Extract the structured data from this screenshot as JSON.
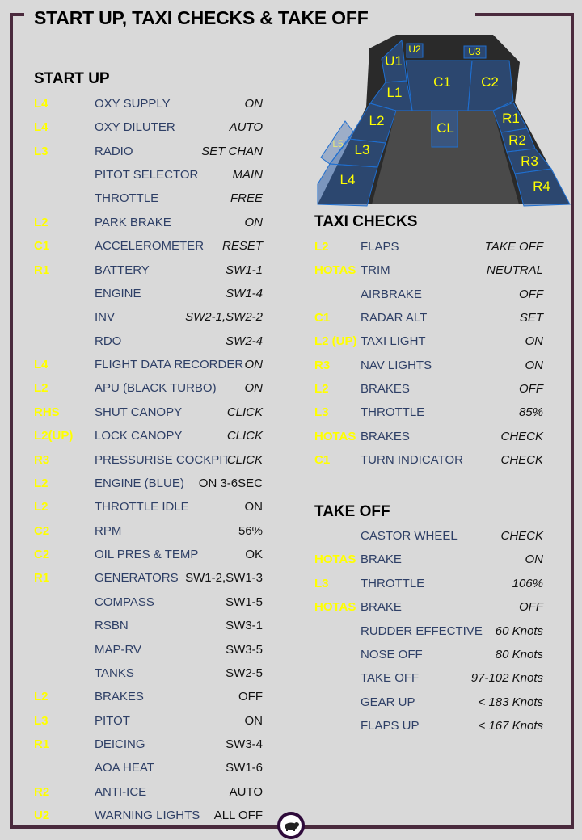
{
  "title": "START UP, TAXI CHECKS & TAKE OFF",
  "colors": {
    "frame": "#4a2a3d",
    "code": "#ffff00",
    "item": "#2e3f66",
    "panel": "#2d5fa8"
  },
  "cockpit_labels": [
    "U1",
    "U2",
    "U3",
    "C1",
    "C2",
    "L1",
    "L2",
    "L3",
    "L4",
    "L5",
    "CL",
    "R1",
    "R2",
    "R3",
    "R4"
  ],
  "start_up": {
    "heading": "START UP",
    "rows": [
      {
        "code": "L4",
        "item": "OXY SUPPLY",
        "value": "ON"
      },
      {
        "code": "L4",
        "item": "OXY DILUTER",
        "value": "AUTO"
      },
      {
        "code": "L3",
        "item": "RADIO",
        "value": "SET CHAN"
      },
      {
        "code": "",
        "item": "PITOT SELECTOR",
        "value": "MAIN"
      },
      {
        "code": "",
        "item": "THROTTLE",
        "value": "FREE"
      },
      {
        "code": "L2",
        "item": "PARK BRAKE",
        "value": "ON"
      },
      {
        "code": "C1",
        "item": "ACCELEROMETER",
        "value": "RESET"
      },
      {
        "code": "R1",
        "item": "BATTERY",
        "value": "SW1-1"
      },
      {
        "code": "",
        "item": "ENGINE",
        "value": "SW1-4"
      },
      {
        "code": "",
        "item": "INV",
        "value": "SW2-1,SW2-2"
      },
      {
        "code": "",
        "item": "RDO",
        "value": "SW2-4"
      },
      {
        "code": "L4",
        "item": "FLIGHT DATA RECORDER",
        "value": "ON"
      },
      {
        "code": "L2",
        "item": "APU (BLACK TURBO)",
        "value": "ON"
      },
      {
        "code": "RHS",
        "item": "SHUT CANOPY",
        "value": "CLICK"
      },
      {
        "code": "L2(UP)",
        "item": "LOCK CANOPY",
        "value": "CLICK"
      },
      {
        "code": "R3",
        "item": "PRESSURISE COCKPIT",
        "value": "CLICK"
      },
      {
        "code": "L2",
        "item": "ENGINE (BLUE)",
        "value": "ON 3-6SEC"
      },
      {
        "code": "L2",
        "item": "THROTTLE IDLE",
        "value": "ON"
      },
      {
        "code": "C2",
        "item": "RPM",
        "value": "56%"
      },
      {
        "code": "C2",
        "item": "OIL PRES & TEMP",
        "value": "OK"
      },
      {
        "code": "R1",
        "item": "GENERATORS",
        "value": "SW1-2,SW1-3"
      },
      {
        "code": "",
        "item": "COMPASS",
        "value": "SW1-5"
      },
      {
        "code": "",
        "item": "RSBN",
        "value": "SW3-1"
      },
      {
        "code": "",
        "item": "MAP-RV",
        "value": "SW3-5"
      },
      {
        "code": "",
        "item": "TANKS",
        "value": "SW2-5"
      },
      {
        "code": "L2",
        "item": "BRAKES",
        "value": "OFF"
      },
      {
        "code": "L3",
        "item": "PITOT",
        "value": "ON"
      },
      {
        "code": "R1",
        "item": "DEICING",
        "value": "SW3-4"
      },
      {
        "code": "",
        "item": "AOA HEAT",
        "value": "SW1-6"
      },
      {
        "code": "R2",
        "item": "ANTI-ICE",
        "value": "AUTO"
      },
      {
        "code": "U2",
        "item": "WARNING LIGHTS",
        "value": "ALL OFF"
      }
    ]
  },
  "taxi_checks": {
    "heading": "TAXI CHECKS",
    "rows": [
      {
        "code": "L2",
        "item": "FLAPS",
        "value": "TAKE  OFF"
      },
      {
        "code": "HOTAS",
        "item": "TRIM",
        "value": "NEUTRAL"
      },
      {
        "code": "",
        "item": "AIRBRAKE",
        "value": "OFF"
      },
      {
        "code": "C1",
        "item": "RADAR ALT",
        "value": "SET"
      },
      {
        "code": "L2 (UP)",
        "item": "TAXI LIGHT",
        "value": "ON"
      },
      {
        "code": "R3",
        "item": "NAV LIGHTS",
        "value": "ON"
      },
      {
        "code": "L2",
        "item": "BRAKES",
        "value": "OFF"
      },
      {
        "code": "L3",
        "item": "THROTTLE",
        "value": "85%"
      },
      {
        "code": "HOTAS",
        "item": "BRAKES",
        "value": "CHECK"
      },
      {
        "code": "C1",
        "item": "TURN INDICATOR",
        "value": "CHECK"
      }
    ]
  },
  "take_off": {
    "heading": "TAKE OFF",
    "rows": [
      {
        "code": "",
        "item": "CASTOR WHEEL",
        "value": "CHECK"
      },
      {
        "code": "HOTAS",
        "item": "BRAKE",
        "value": "ON"
      },
      {
        "code": "L3",
        "item": "THROTTLE",
        "value": "106%"
      },
      {
        "code": "HOTAS",
        "item": "BRAKE",
        "value": "OFF"
      },
      {
        "code": "",
        "item": "RUDDER EFFECTIVE",
        "value": "60 Knots"
      },
      {
        "code": "",
        "item": "NOSE OFF",
        "value": "80 Knots"
      },
      {
        "code": "",
        "item": "TAKE OFF",
        "value": "97-102 Knots"
      },
      {
        "code": "",
        "item": "GEAR UP",
        "value": "< 183 Knots"
      },
      {
        "code": "",
        "item": "FLAPS UP",
        "value": "< 167 Knots"
      }
    ]
  },
  "logo_icon": "animal-logo-icon"
}
